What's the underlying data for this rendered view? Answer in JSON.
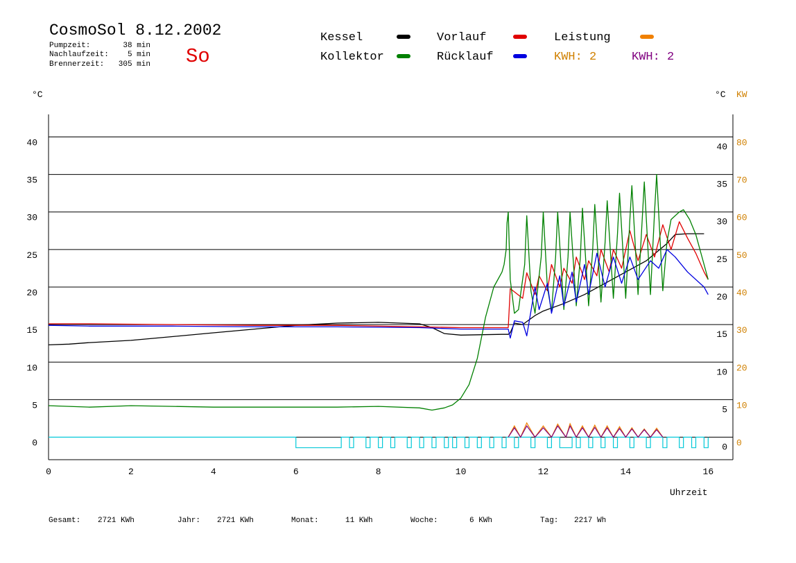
{
  "header": {
    "title": "CosmoSol 8.12.2002",
    "day": "So",
    "stats": [
      {
        "label": "Pumpzeit:",
        "value": "38 min"
      },
      {
        "label": "Nachlaufzeit:",
        "value": "5 min"
      },
      {
        "label": "Brennerzeit:",
        "value": "305 min"
      }
    ]
  },
  "legend": [
    {
      "label": "Kessel",
      "color": "#000000"
    },
    {
      "label": "Vorlauf",
      "color": "#e00000"
    },
    {
      "label": "Leistung",
      "color": "#f08000"
    },
    {
      "label": "Kollektor",
      "color": "#008000"
    },
    {
      "label": "Rücklauf",
      "color": "#0000e0"
    },
    {
      "label": "KWH: 2",
      "color": "#d08000"
    },
    {
      "label": "KWH: 2",
      "color": "#800080"
    }
  ],
  "footer": [
    {
      "label": "Gesamt:",
      "value": "2721 KWh"
    },
    {
      "label": "Jahr:",
      "value": "2721 KWh"
    },
    {
      "label": "Monat:",
      "value": "11 KWh"
    },
    {
      "label": "Woche:",
      "value": "6 KWh"
    },
    {
      "label": "Tag:",
      "value": "2217 Wh"
    }
  ],
  "chart_data": {
    "type": "line",
    "xlabel": "Uhrzeit",
    "ylabel_left": "°C",
    "ylabel_right": "°C",
    "ylabel_right2": "KW",
    "xlim": [
      0,
      16.6
    ],
    "ylim": [
      -3,
      43
    ],
    "ylim_kw": [
      -6,
      86
    ],
    "x_ticks": [
      "0",
      "2",
      "4",
      "6",
      "8",
      "10",
      "12",
      "14",
      "16"
    ],
    "y_ticks": [
      "0",
      "5",
      "10",
      "15",
      "20",
      "25",
      "30",
      "35",
      "40"
    ],
    "kw_ticks": [
      "0",
      "10",
      "20",
      "30",
      "40",
      "50",
      "60",
      "70",
      "80"
    ],
    "grid": true,
    "series": [
      {
        "name": "Kessel",
        "color": "#000000",
        "points": [
          [
            0,
            12.3
          ],
          [
            0.5,
            12.4
          ],
          [
            1,
            12.6
          ],
          [
            2,
            12.9
          ],
          [
            3,
            13.4
          ],
          [
            4,
            13.9
          ],
          [
            5,
            14.4
          ],
          [
            6,
            14.9
          ],
          [
            7,
            15.2
          ],
          [
            8,
            15.3
          ],
          [
            9,
            15.1
          ],
          [
            9.3,
            14.6
          ],
          [
            9.6,
            13.8
          ],
          [
            10,
            13.6
          ],
          [
            11,
            13.7
          ],
          [
            11.15,
            13.7
          ],
          [
            11.2,
            13.9
          ],
          [
            11.3,
            15.2
          ],
          [
            11.5,
            15.0
          ],
          [
            11.8,
            16.2
          ],
          [
            12,
            16.8
          ],
          [
            12.5,
            17.8
          ],
          [
            13,
            19
          ],
          [
            13.5,
            20.5
          ],
          [
            14,
            22
          ],
          [
            14.5,
            23.5
          ],
          [
            15,
            25.8
          ],
          [
            15.2,
            27
          ],
          [
            15.5,
            27.1
          ],
          [
            15.9,
            27.1
          ]
        ]
      },
      {
        "name": "Vorlauf",
        "color": "#e00000",
        "points": [
          [
            0,
            15.1
          ],
          [
            1,
            15.1
          ],
          [
            3,
            15
          ],
          [
            5,
            14.9
          ],
          [
            7,
            14.9
          ],
          [
            9,
            14.7
          ],
          [
            10,
            14.6
          ],
          [
            11,
            14.6
          ],
          [
            11.15,
            14.6
          ],
          [
            11.2,
            19.8
          ],
          [
            11.5,
            18.5
          ],
          [
            11.6,
            21.9
          ],
          [
            11.8,
            19
          ],
          [
            11.9,
            21.5
          ],
          [
            12.1,
            19.5
          ],
          [
            12.2,
            23
          ],
          [
            12.4,
            20
          ],
          [
            12.5,
            22.5
          ],
          [
            12.7,
            20.5
          ],
          [
            12.8,
            24
          ],
          [
            13,
            21
          ],
          [
            13.1,
            23.5
          ],
          [
            13.3,
            21.5
          ],
          [
            13.4,
            25
          ],
          [
            13.6,
            22
          ],
          [
            13.7,
            25
          ],
          [
            13.9,
            22.5
          ],
          [
            14.1,
            27.5
          ],
          [
            14.3,
            23.5
          ],
          [
            14.5,
            27
          ],
          [
            14.7,
            24
          ],
          [
            14.9,
            28.3
          ],
          [
            15.1,
            25
          ],
          [
            15.3,
            28.7
          ],
          [
            15.5,
            26.5
          ],
          [
            15.7,
            24.5
          ],
          [
            15.9,
            22
          ],
          [
            16,
            21
          ]
        ]
      },
      {
        "name": "Kollektor",
        "color": "#008000",
        "points": [
          [
            0,
            4.2
          ],
          [
            1,
            4
          ],
          [
            2,
            4.2
          ],
          [
            3,
            4.1
          ],
          [
            4,
            4
          ],
          [
            5,
            4
          ],
          [
            6,
            4
          ],
          [
            7,
            4
          ],
          [
            8,
            4.1
          ],
          [
            9,
            3.9
          ],
          [
            9.3,
            3.6
          ],
          [
            9.6,
            3.9
          ],
          [
            9.8,
            4.3
          ],
          [
            10,
            5.2
          ],
          [
            10.2,
            7
          ],
          [
            10.4,
            10.5
          ],
          [
            10.6,
            16
          ],
          [
            10.8,
            20
          ],
          [
            11,
            22
          ],
          [
            11.05,
            23
          ],
          [
            11.1,
            25
          ],
          [
            11.12,
            28.5
          ],
          [
            11.15,
            30
          ],
          [
            11.2,
            21
          ],
          [
            11.3,
            16.5
          ],
          [
            11.4,
            17
          ],
          [
            11.55,
            23
          ],
          [
            11.6,
            29.5
          ],
          [
            11.7,
            19.5
          ],
          [
            11.8,
            16.5
          ],
          [
            11.95,
            24
          ],
          [
            12,
            30
          ],
          [
            12.1,
            20
          ],
          [
            12.2,
            16.7
          ],
          [
            12.3,
            24
          ],
          [
            12.35,
            30
          ],
          [
            12.5,
            17
          ],
          [
            12.6,
            24
          ],
          [
            12.65,
            30
          ],
          [
            12.8,
            17.5
          ],
          [
            12.9,
            24
          ],
          [
            12.95,
            30.5
          ],
          [
            13.1,
            17.5
          ],
          [
            13.2,
            25
          ],
          [
            13.25,
            31
          ],
          [
            13.4,
            18
          ],
          [
            13.5,
            26
          ],
          [
            13.55,
            31.5
          ],
          [
            13.7,
            18.5
          ],
          [
            13.8,
            27
          ],
          [
            13.85,
            32.5
          ],
          [
            14,
            18.5
          ],
          [
            14.1,
            29
          ],
          [
            14.15,
            33.5
          ],
          [
            14.3,
            19
          ],
          [
            14.4,
            29
          ],
          [
            14.45,
            34
          ],
          [
            14.6,
            19
          ],
          [
            14.7,
            30
          ],
          [
            14.75,
            35
          ],
          [
            14.9,
            19.5
          ],
          [
            15,
            26
          ],
          [
            15.1,
            29
          ],
          [
            15.3,
            30
          ],
          [
            15.4,
            30.3
          ],
          [
            15.55,
            29
          ],
          [
            15.7,
            27
          ],
          [
            15.9,
            23
          ],
          [
            16,
            21
          ]
        ]
      },
      {
        "name": "Rücklauf",
        "color": "#0000e0",
        "points": [
          [
            0,
            14.9
          ],
          [
            1,
            14.8
          ],
          [
            3,
            14.8
          ],
          [
            5,
            14.7
          ],
          [
            7,
            14.7
          ],
          [
            9,
            14.6
          ],
          [
            10,
            14.4
          ],
          [
            11,
            14.4
          ],
          [
            11.15,
            14.4
          ],
          [
            11.2,
            13.2
          ],
          [
            11.3,
            15.5
          ],
          [
            11.5,
            15.3
          ],
          [
            11.6,
            13.5
          ],
          [
            11.8,
            20
          ],
          [
            11.9,
            17
          ],
          [
            12.1,
            20.5
          ],
          [
            12.2,
            16.5
          ],
          [
            12.4,
            21.5
          ],
          [
            12.5,
            17.5
          ],
          [
            12.7,
            22
          ],
          [
            12.8,
            18
          ],
          [
            13,
            23
          ],
          [
            13.1,
            19
          ],
          [
            13.3,
            24.5
          ],
          [
            13.5,
            20
          ],
          [
            13.7,
            24
          ],
          [
            13.9,
            20.5
          ],
          [
            14.1,
            24
          ],
          [
            14.3,
            21
          ],
          [
            14.6,
            23.5
          ],
          [
            14.8,
            22.5
          ],
          [
            15,
            25
          ],
          [
            15.2,
            24
          ],
          [
            15.5,
            22
          ],
          [
            15.9,
            20
          ],
          [
            16,
            19
          ]
        ]
      }
    ],
    "burner_times": [
      [
        6.0,
        7.1
      ],
      [
        7.3,
        7.4
      ],
      [
        7.7,
        7.8
      ],
      [
        8.0,
        8.1
      ],
      [
        8.3,
        8.4
      ],
      [
        8.7,
        8.8
      ],
      [
        9.0,
        9.1
      ],
      [
        9.3,
        9.4
      ],
      [
        9.6,
        9.7
      ],
      [
        9.8,
        9.9
      ],
      [
        10.1,
        10.2
      ],
      [
        10.4,
        10.5
      ],
      [
        10.7,
        10.8
      ],
      [
        11.0,
        11.1
      ],
      [
        11.3,
        11.4
      ],
      [
        11.7,
        11.8
      ],
      [
        12.1,
        12.2
      ],
      [
        12.4,
        12.7
      ],
      [
        12.8,
        12.9
      ],
      [
        13.1,
        13.2
      ],
      [
        13.4,
        13.5
      ],
      [
        13.7,
        13.8
      ],
      [
        14.1,
        14.2
      ],
      [
        14.5,
        14.6
      ],
      [
        14.9,
        15.0
      ],
      [
        15.3,
        15.4
      ],
      [
        15.6,
        15.7
      ],
      [
        15.9,
        16.0
      ]
    ],
    "power_kw": [
      [
        11.15,
        0
      ],
      [
        11.3,
        3
      ],
      [
        11.45,
        0
      ],
      [
        11.6,
        3.8
      ],
      [
        11.8,
        0
      ],
      [
        12,
        3
      ],
      [
        12.2,
        0
      ],
      [
        12.35,
        3.5
      ],
      [
        12.55,
        0
      ],
      [
        12.65,
        3.6
      ],
      [
        12.8,
        0
      ],
      [
        12.95,
        3
      ],
      [
        13.1,
        0
      ],
      [
        13.25,
        3.2
      ],
      [
        13.4,
        0
      ],
      [
        13.55,
        3
      ],
      [
        13.7,
        0
      ],
      [
        13.85,
        2.8
      ],
      [
        14,
        0
      ],
      [
        14.15,
        2.5
      ],
      [
        14.3,
        0
      ],
      [
        14.45,
        2.2
      ],
      [
        14.6,
        0
      ],
      [
        14.75,
        2.4
      ],
      [
        14.9,
        0
      ]
    ],
    "energy_kw": [
      [
        11.15,
        0
      ],
      [
        11.3,
        2.5
      ],
      [
        11.45,
        0
      ],
      [
        11.6,
        3
      ],
      [
        11.8,
        0
      ],
      [
        12,
        2.5
      ],
      [
        12.2,
        0
      ],
      [
        12.35,
        3
      ],
      [
        12.55,
        0
      ],
      [
        12.65,
        3
      ],
      [
        12.8,
        0
      ],
      [
        12.95,
        2.5
      ],
      [
        13.1,
        0
      ],
      [
        13.25,
        2.6
      ],
      [
        13.4,
        0
      ],
      [
        13.55,
        2.5
      ],
      [
        13.7,
        0
      ],
      [
        13.85,
        2.3
      ],
      [
        14,
        0
      ],
      [
        14.15,
        2.2
      ],
      [
        14.3,
        0
      ],
      [
        14.45,
        2
      ],
      [
        14.6,
        0
      ],
      [
        14.75,
        2
      ],
      [
        14.9,
        0
      ]
    ]
  }
}
